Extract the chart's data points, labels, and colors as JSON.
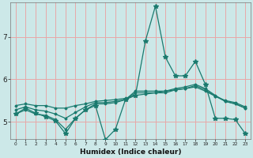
{
  "xlabel": "Humidex (Indice chaleur)",
  "bg_color": "#cce8e8",
  "grid_color": "#e8a8a8",
  "line_color": "#1a7a6e",
  "xlim": [
    -0.5,
    23.5
  ],
  "ylim": [
    4.6,
    7.8
  ],
  "yticks": [
    5,
    6,
    7
  ],
  "xticks": [
    0,
    1,
    2,
    3,
    4,
    5,
    6,
    7,
    8,
    9,
    10,
    11,
    12,
    13,
    14,
    15,
    16,
    17,
    18,
    19,
    20,
    21,
    22,
    23
  ],
  "line1_x": [
    0,
    1,
    2,
    3,
    4,
    5,
    6,
    7,
    8,
    9,
    10,
    11,
    12,
    13,
    14,
    15,
    16,
    17,
    18,
    19,
    20,
    21,
    22,
    23
  ],
  "line1_y": [
    5.18,
    5.32,
    5.2,
    5.12,
    5.02,
    4.72,
    5.08,
    5.28,
    5.38,
    4.58,
    4.82,
    5.52,
    5.62,
    6.9,
    7.72,
    6.52,
    6.08,
    6.08,
    6.42,
    5.88,
    5.08,
    5.08,
    5.05,
    4.72
  ],
  "line2_x": [
    0,
    1,
    2,
    3,
    4,
    5,
    6,
    7,
    8,
    9,
    10,
    11,
    12,
    13,
    14,
    15,
    16,
    17,
    18,
    19,
    20,
    21,
    22,
    23
  ],
  "line2_y": [
    5.38,
    5.42,
    5.38,
    5.38,
    5.32,
    5.32,
    5.38,
    5.42,
    5.48,
    5.5,
    5.52,
    5.55,
    5.62,
    5.65,
    5.68,
    5.72,
    5.75,
    5.78,
    5.82,
    5.72,
    5.6,
    5.5,
    5.45,
    5.35
  ],
  "line3_x": [
    0,
    1,
    2,
    3,
    4,
    5,
    6,
    7,
    8,
    9,
    10,
    11,
    12,
    13,
    14,
    15,
    16,
    17,
    18,
    19,
    20,
    21,
    22,
    23
  ],
  "line3_y": [
    5.18,
    5.28,
    5.18,
    5.15,
    5.05,
    4.82,
    5.08,
    5.28,
    5.42,
    5.42,
    5.45,
    5.52,
    5.72,
    5.72,
    5.72,
    5.72,
    5.78,
    5.82,
    5.88,
    5.78,
    5.62,
    5.48,
    5.42,
    5.32
  ],
  "line4_x": [
    0,
    1,
    2,
    3,
    4,
    5,
    6,
    7,
    8,
    9,
    10,
    11,
    12,
    13,
    14,
    15,
    16,
    17,
    18,
    19,
    20,
    21,
    22,
    23
  ],
  "line4_y": [
    5.28,
    5.35,
    5.28,
    5.25,
    5.18,
    5.08,
    5.22,
    5.35,
    5.45,
    5.45,
    5.48,
    5.52,
    5.68,
    5.68,
    5.68,
    5.68,
    5.75,
    5.78,
    5.85,
    5.75,
    5.6,
    5.48,
    5.42,
    5.32
  ]
}
